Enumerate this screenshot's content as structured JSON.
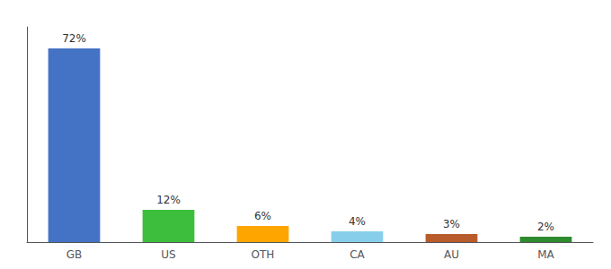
{
  "chart_data": {
    "type": "bar",
    "categories": [
      "GB",
      "US",
      "OTH",
      "CA",
      "AU",
      "MA"
    ],
    "values": [
      72,
      12,
      6,
      4,
      3,
      2
    ],
    "value_labels": [
      "72%",
      "12%",
      "6%",
      "4%",
      "3%",
      "2%"
    ],
    "colors": [
      "#4472C4",
      "#3DBF3D",
      "#FFA500",
      "#87CEEB",
      "#B85C2C",
      "#2E8B2E"
    ],
    "ylim": [
      0,
      80
    ],
    "data_labels": true,
    "tick_labels": "x",
    "grid": false
  }
}
